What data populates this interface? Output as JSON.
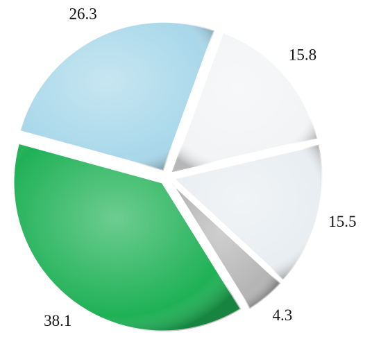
{
  "chart_data": {
    "type": "pie",
    "values": [
      15.8,
      15.5,
      4.3,
      38.1,
      26.3
    ],
    "colors": [
      "#f2f4f6",
      "#e9eef2",
      "#b5b5b5",
      "#1fb156",
      "#a9d8ea"
    ]
  }
}
